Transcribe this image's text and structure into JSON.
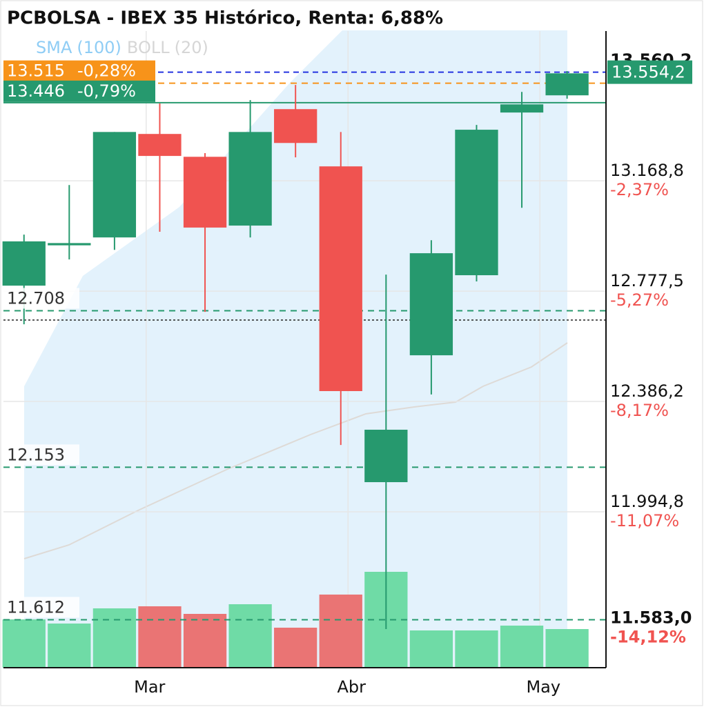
{
  "chart_data": {
    "type": "candlestick",
    "title": "PCBOLSA - IBEX 35 Histórico, Renta: 6,88%",
    "indicators": [
      {
        "name": "SMA",
        "param": "(100)",
        "color": "#8fcdf5"
      },
      {
        "name": "BOLL",
        "param": "(20)",
        "color": "#d6d6d6"
      }
    ],
    "up_color": "#26996e",
    "down_color": "#f05350",
    "open": [
      12797,
      12940,
      12968,
      13335,
      13254,
      13010,
      13423,
      13220,
      12100,
      12550,
      12834,
      13411,
      13472
    ],
    "close": [
      12954,
      12948,
      13342,
      13257,
      13003,
      13342,
      13303,
      12423,
      12286,
      12912,
      13350,
      13440,
      13550
    ],
    "high": [
      12978,
      13154,
      13342,
      13443,
      13267,
      13455,
      13509,
      13342,
      12836,
      12958,
      13367,
      13484,
      13558
    ],
    "low": [
      12660,
      12890,
      12924,
      12988,
      12704,
      12968,
      13252,
      12232,
      11579,
      12411,
      12812,
      13073,
      13460
    ],
    "volume": [
      70,
      64,
      86,
      89,
      78,
      92,
      58,
      106,
      139,
      54,
      54,
      61,
      56
    ],
    "volume_ylim": [
      0,
      300
    ],
    "volume_up_color": "#6fdba6",
    "volume_down_color": "#ea7474",
    "xlim": [
      -0.53,
      12.86
    ],
    "xticks": [
      {
        "value": 2.7,
        "label": "Mar"
      },
      {
        "value": 7.16,
        "label": "Abr"
      },
      {
        "value": 11.4,
        "label": "May"
      }
    ],
    "ylim": [
      11442,
      13700
    ],
    "yticks": [
      {
        "value": 13560.2,
        "label": "13.560,2"
      },
      {
        "value": 13168.8,
        "label": "13.168,8",
        "change": "-2,37%"
      },
      {
        "value": 12777.5,
        "label": "12.777,5",
        "change": "-5,27%"
      },
      {
        "value": 12386.2,
        "label": "12.386,2",
        "change": "-8,17%"
      },
      {
        "value": 11994.8,
        "label": "11.994,8",
        "change": "-11,07%"
      },
      {
        "value": 11583.0,
        "label": "11.583,0",
        "change": "-14,12%"
      }
    ],
    "grid": true,
    "levels": [
      {
        "value": 13515,
        "label": "13.515",
        "change": "-0,28%",
        "color": "#f7931a",
        "style": "dashed",
        "box": true
      },
      {
        "value": 13446,
        "label": "13.446",
        "change": "-0,79%",
        "color": "#26996e",
        "style": "solid",
        "box": true
      },
      {
        "value": 12708,
        "label": "12.708",
        "color": "#26996e",
        "style": "dashed"
      },
      {
        "value": 12153,
        "label": "12.153",
        "color": "#26996e",
        "style": "dashed"
      },
      {
        "value": 11612,
        "label": "11.612",
        "color": "#26996e",
        "style": "dashed"
      }
    ],
    "last_price": {
      "value": 13554.2,
      "label": "13.554,2",
      "color": "#2433e0"
    }
  }
}
